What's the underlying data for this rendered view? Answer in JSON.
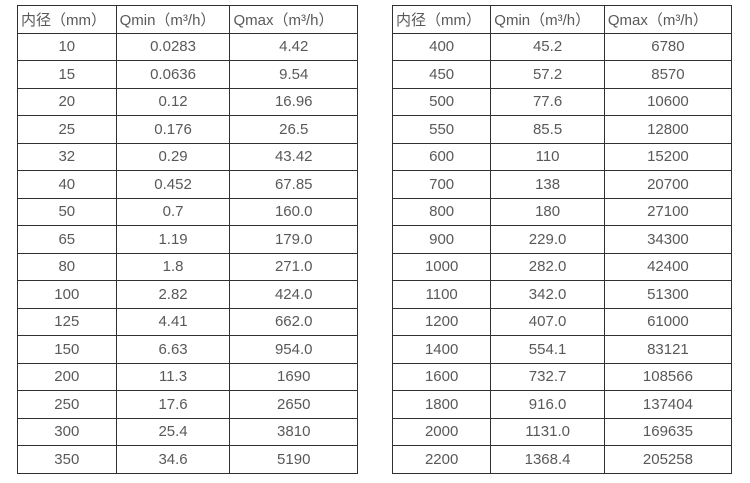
{
  "colors": {
    "border": "#303030",
    "text": "#595959",
    "background": "#ffffff"
  },
  "tables": [
    {
      "name": "flow-spec-table-small-diameters",
      "headers": [
        "内径（mm）",
        "Qmin（m³/h）",
        "Qmax（m³/h）"
      ],
      "rows": [
        [
          "10",
          "0.0283",
          "4.42"
        ],
        [
          "15",
          "0.0636",
          "9.54"
        ],
        [
          "20",
          "0.12",
          "16.96"
        ],
        [
          "25",
          "0.176",
          "26.5"
        ],
        [
          "32",
          "0.29",
          "43.42"
        ],
        [
          "40",
          "0.452",
          "67.85"
        ],
        [
          "50",
          "0.7",
          "160.0"
        ],
        [
          "65",
          "1.19",
          "179.0"
        ],
        [
          "80",
          "1.8",
          "271.0"
        ],
        [
          "100",
          "2.82",
          "424.0"
        ],
        [
          "125",
          "4.41",
          "662.0"
        ],
        [
          "150",
          "6.63",
          "954.0"
        ],
        [
          "200",
          "11.3",
          "1690"
        ],
        [
          "250",
          "17.6",
          "2650"
        ],
        [
          "300",
          "25.4",
          "3810"
        ],
        [
          "350",
          "34.6",
          "5190"
        ]
      ]
    },
    {
      "name": "flow-spec-table-large-diameters",
      "headers": [
        "内径（mm）",
        "Qmin（m³/h）",
        "Qmax（m³/h）"
      ],
      "rows": [
        [
          "400",
          "45.2",
          "6780"
        ],
        [
          "450",
          "57.2",
          "8570"
        ],
        [
          "500",
          "77.6",
          "10600"
        ],
        [
          "550",
          "85.5",
          "12800"
        ],
        [
          "600",
          "110",
          "15200"
        ],
        [
          "700",
          "138",
          "20700"
        ],
        [
          "800",
          "180",
          "27100"
        ],
        [
          "900",
          "229.0",
          "34300"
        ],
        [
          "1000",
          "282.0",
          "42400"
        ],
        [
          "1100",
          "342.0",
          "51300"
        ],
        [
          "1200",
          "407.0",
          "61000"
        ],
        [
          "1400",
          "554.1",
          "83121"
        ],
        [
          "1600",
          "732.7",
          "108566"
        ],
        [
          "1800",
          "916.0",
          "137404"
        ],
        [
          "2000",
          "1131.0",
          "169635"
        ],
        [
          "2200",
          "1368.4",
          "205258"
        ]
      ]
    }
  ]
}
